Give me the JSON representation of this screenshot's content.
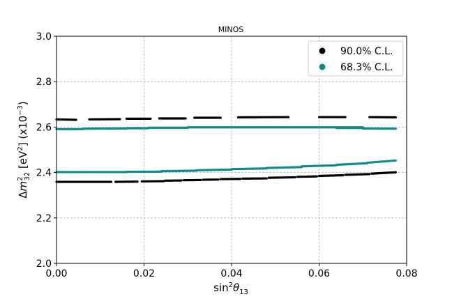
{
  "chart_data": {
    "type": "scatter",
    "title": "MINOS",
    "xlabel_main": "sin",
    "xlabel_sup": "2",
    "xlabel_theta": "θ",
    "xlabel_sub": "13",
    "ylabel_parts": {
      "delta": "Δ",
      "m": "m",
      "m_sup": "2",
      "m_sub": "32",
      "unit_open": " [eV",
      "unit_sup": "2",
      "unit_close": "] (x10",
      "exp_sup": "−3",
      "end": ")"
    },
    "xlim": [
      0.0,
      0.08
    ],
    "ylim": [
      2.0,
      3.0
    ],
    "xticks": [
      0.0,
      0.02,
      0.04,
      0.06,
      0.08
    ],
    "xtick_labels": [
      "0.00",
      "0.02",
      "0.04",
      "0.06",
      "0.08"
    ],
    "yticks": [
      2.0,
      2.2,
      2.4,
      2.6,
      2.8,
      3.0
    ],
    "ytick_labels": [
      "2.0",
      "2.2",
      "2.4",
      "2.6",
      "2.8",
      "3.0"
    ],
    "grid": true,
    "legend_position": "top-right",
    "colors": {
      "c90": "#000000",
      "c68": "#0e8c8c"
    },
    "series": [
      {
        "name": "90.0% C.L.",
        "color": "#000000",
        "segments": [
          {
            "x": [
              0.0,
              0.0045
            ],
            "y": [
              2.634,
              2.632
            ]
          },
          {
            "x": [
              0.0075,
              0.0145
            ],
            "y": [
              2.634,
              2.635
            ]
          },
          {
            "x": [
              0.016,
              0.0215
            ],
            "y": [
              2.637,
              2.637
            ]
          },
          {
            "x": [
              0.0235,
              0.0295
            ],
            "y": [
              2.638,
              2.638
            ]
          },
          {
            "x": [
              0.0315,
              0.0375
            ],
            "y": [
              2.641,
              2.641
            ]
          },
          {
            "x": [
              0.0415,
              0.053
            ],
            "y": [
              2.643,
              2.644
            ]
          },
          {
            "x": [
              0.06,
              0.066
            ],
            "y": [
              2.644,
              2.644
            ]
          },
          {
            "x": [
              0.0715,
              0.0775
            ],
            "y": [
              2.644,
              2.643
            ]
          },
          {
            "x": [
              0.0,
              0.0125
            ],
            "y": [
              2.359,
              2.359
            ]
          },
          {
            "x": [
              0.0135,
              0.0185
            ],
            "y": [
              2.359,
              2.36
            ]
          },
          {
            "x": [
              0.0195,
              0.0245
            ],
            "y": [
              2.361,
              2.362
            ]
          },
          {
            "x": [
              0.0248,
              0.0285
            ],
            "y": [
              2.364,
              2.365
            ]
          },
          {
            "x": [
              0.029,
              0.033
            ],
            "y": [
              2.366,
              2.367
            ]
          },
          {
            "x": [
              0.0335,
              0.037
            ],
            "y": [
              2.368,
              2.369
            ]
          },
          {
            "x": [
              0.0375,
              0.042
            ],
            "y": [
              2.371,
              2.372
            ]
          },
          {
            "x": [
              0.0425,
              0.048
            ],
            "y": [
              2.373,
              2.374
            ]
          },
          {
            "x": [
              0.0485,
              0.0545
            ],
            "y": [
              2.377,
              2.379
            ]
          },
          {
            "x": [
              0.055,
              0.0595
            ],
            "y": [
              2.381,
              2.383
            ]
          },
          {
            "x": [
              0.06,
              0.0655
            ],
            "y": [
              2.385,
              2.388
            ]
          },
          {
            "x": [
              0.066,
              0.0715
            ],
            "y": [
              2.39,
              2.393
            ]
          },
          {
            "x": [
              0.072,
              0.0775
            ],
            "y": [
              2.395,
              2.401
            ]
          }
        ]
      },
      {
        "name": "68.3% C.L.",
        "color": "#0e8c8c",
        "segments": [
          {
            "x": [
              0.0,
              0.006
            ],
            "y": [
              2.591,
              2.591
            ]
          },
          {
            "x": [
              0.006,
              0.016
            ],
            "y": [
              2.593,
              2.594
            ]
          },
          {
            "x": [
              0.016,
              0.021
            ],
            "y": [
              2.595,
              2.595
            ]
          },
          {
            "x": [
              0.021,
              0.03
            ],
            "y": [
              2.597,
              2.597
            ]
          },
          {
            "x": [
              0.03,
              0.07
            ],
            "y": [
              2.599,
              2.599
            ]
          },
          {
            "x": [
              0.064,
              0.07
            ],
            "y": [
              2.596,
              2.596
            ]
          },
          {
            "x": [
              0.07,
              0.0775
            ],
            "y": [
              2.594,
              2.593
            ]
          },
          {
            "x": [
              0.0,
              0.016
            ],
            "y": [
              2.402,
              2.402
            ]
          },
          {
            "x": [
              0.016,
              0.024
            ],
            "y": [
              2.403,
              2.404
            ]
          },
          {
            "x": [
              0.024,
              0.032
            ],
            "y": [
              2.406,
              2.408
            ]
          },
          {
            "x": [
              0.032,
              0.04
            ],
            "y": [
              2.41,
              2.413
            ]
          },
          {
            "x": [
              0.04,
              0.048
            ],
            "y": [
              2.415,
              2.418
            ]
          },
          {
            "x": [
              0.048,
              0.056
            ],
            "y": [
              2.42,
              2.424
            ]
          },
          {
            "x": [
              0.056,
              0.064
            ],
            "y": [
              2.427,
              2.432
            ]
          },
          {
            "x": [
              0.064,
              0.071
            ],
            "y": [
              2.434,
              2.441
            ]
          },
          {
            "x": [
              0.071,
              0.0775
            ],
            "y": [
              2.443,
              2.453
            ]
          }
        ]
      }
    ]
  }
}
